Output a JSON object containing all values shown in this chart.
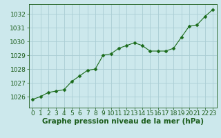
{
  "x": [
    0,
    1,
    2,
    3,
    4,
    5,
    6,
    7,
    8,
    9,
    10,
    11,
    12,
    13,
    14,
    15,
    16,
    17,
    18,
    19,
    20,
    21,
    22,
    23
  ],
  "y": [
    1025.8,
    1026.0,
    1026.3,
    1026.4,
    1026.5,
    1027.1,
    1027.5,
    1027.9,
    1028.0,
    1029.0,
    1029.1,
    1029.5,
    1029.7,
    1029.9,
    1029.7,
    1029.3,
    1029.3,
    1029.3,
    1029.5,
    1030.3,
    1031.1,
    1031.2,
    1031.8,
    1032.3
  ],
  "line_color": "#1a6b1a",
  "marker": "D",
  "marker_size": 2.5,
  "bg_color": "#cce8ec",
  "grid_color": "#aacdd4",
  "xlabel": "Graphe pression niveau de la mer (hPa)",
  "xlabel_color": "#1a5c1a",
  "tick_color": "#1a5c1a",
  "axis_color": "#1a5c1a",
  "ylim": [
    1025.2,
    1032.7
  ],
  "xlim": [
    -0.5,
    23.5
  ],
  "yticks": [
    1026,
    1027,
    1028,
    1029,
    1030,
    1031,
    1032
  ],
  "xticks": [
    0,
    1,
    2,
    3,
    4,
    5,
    6,
    7,
    8,
    9,
    10,
    11,
    12,
    13,
    14,
    15,
    16,
    17,
    18,
    19,
    20,
    21,
    22,
    23
  ],
  "xlabel_fontsize": 7.5,
  "tick_fontsize": 6.5
}
